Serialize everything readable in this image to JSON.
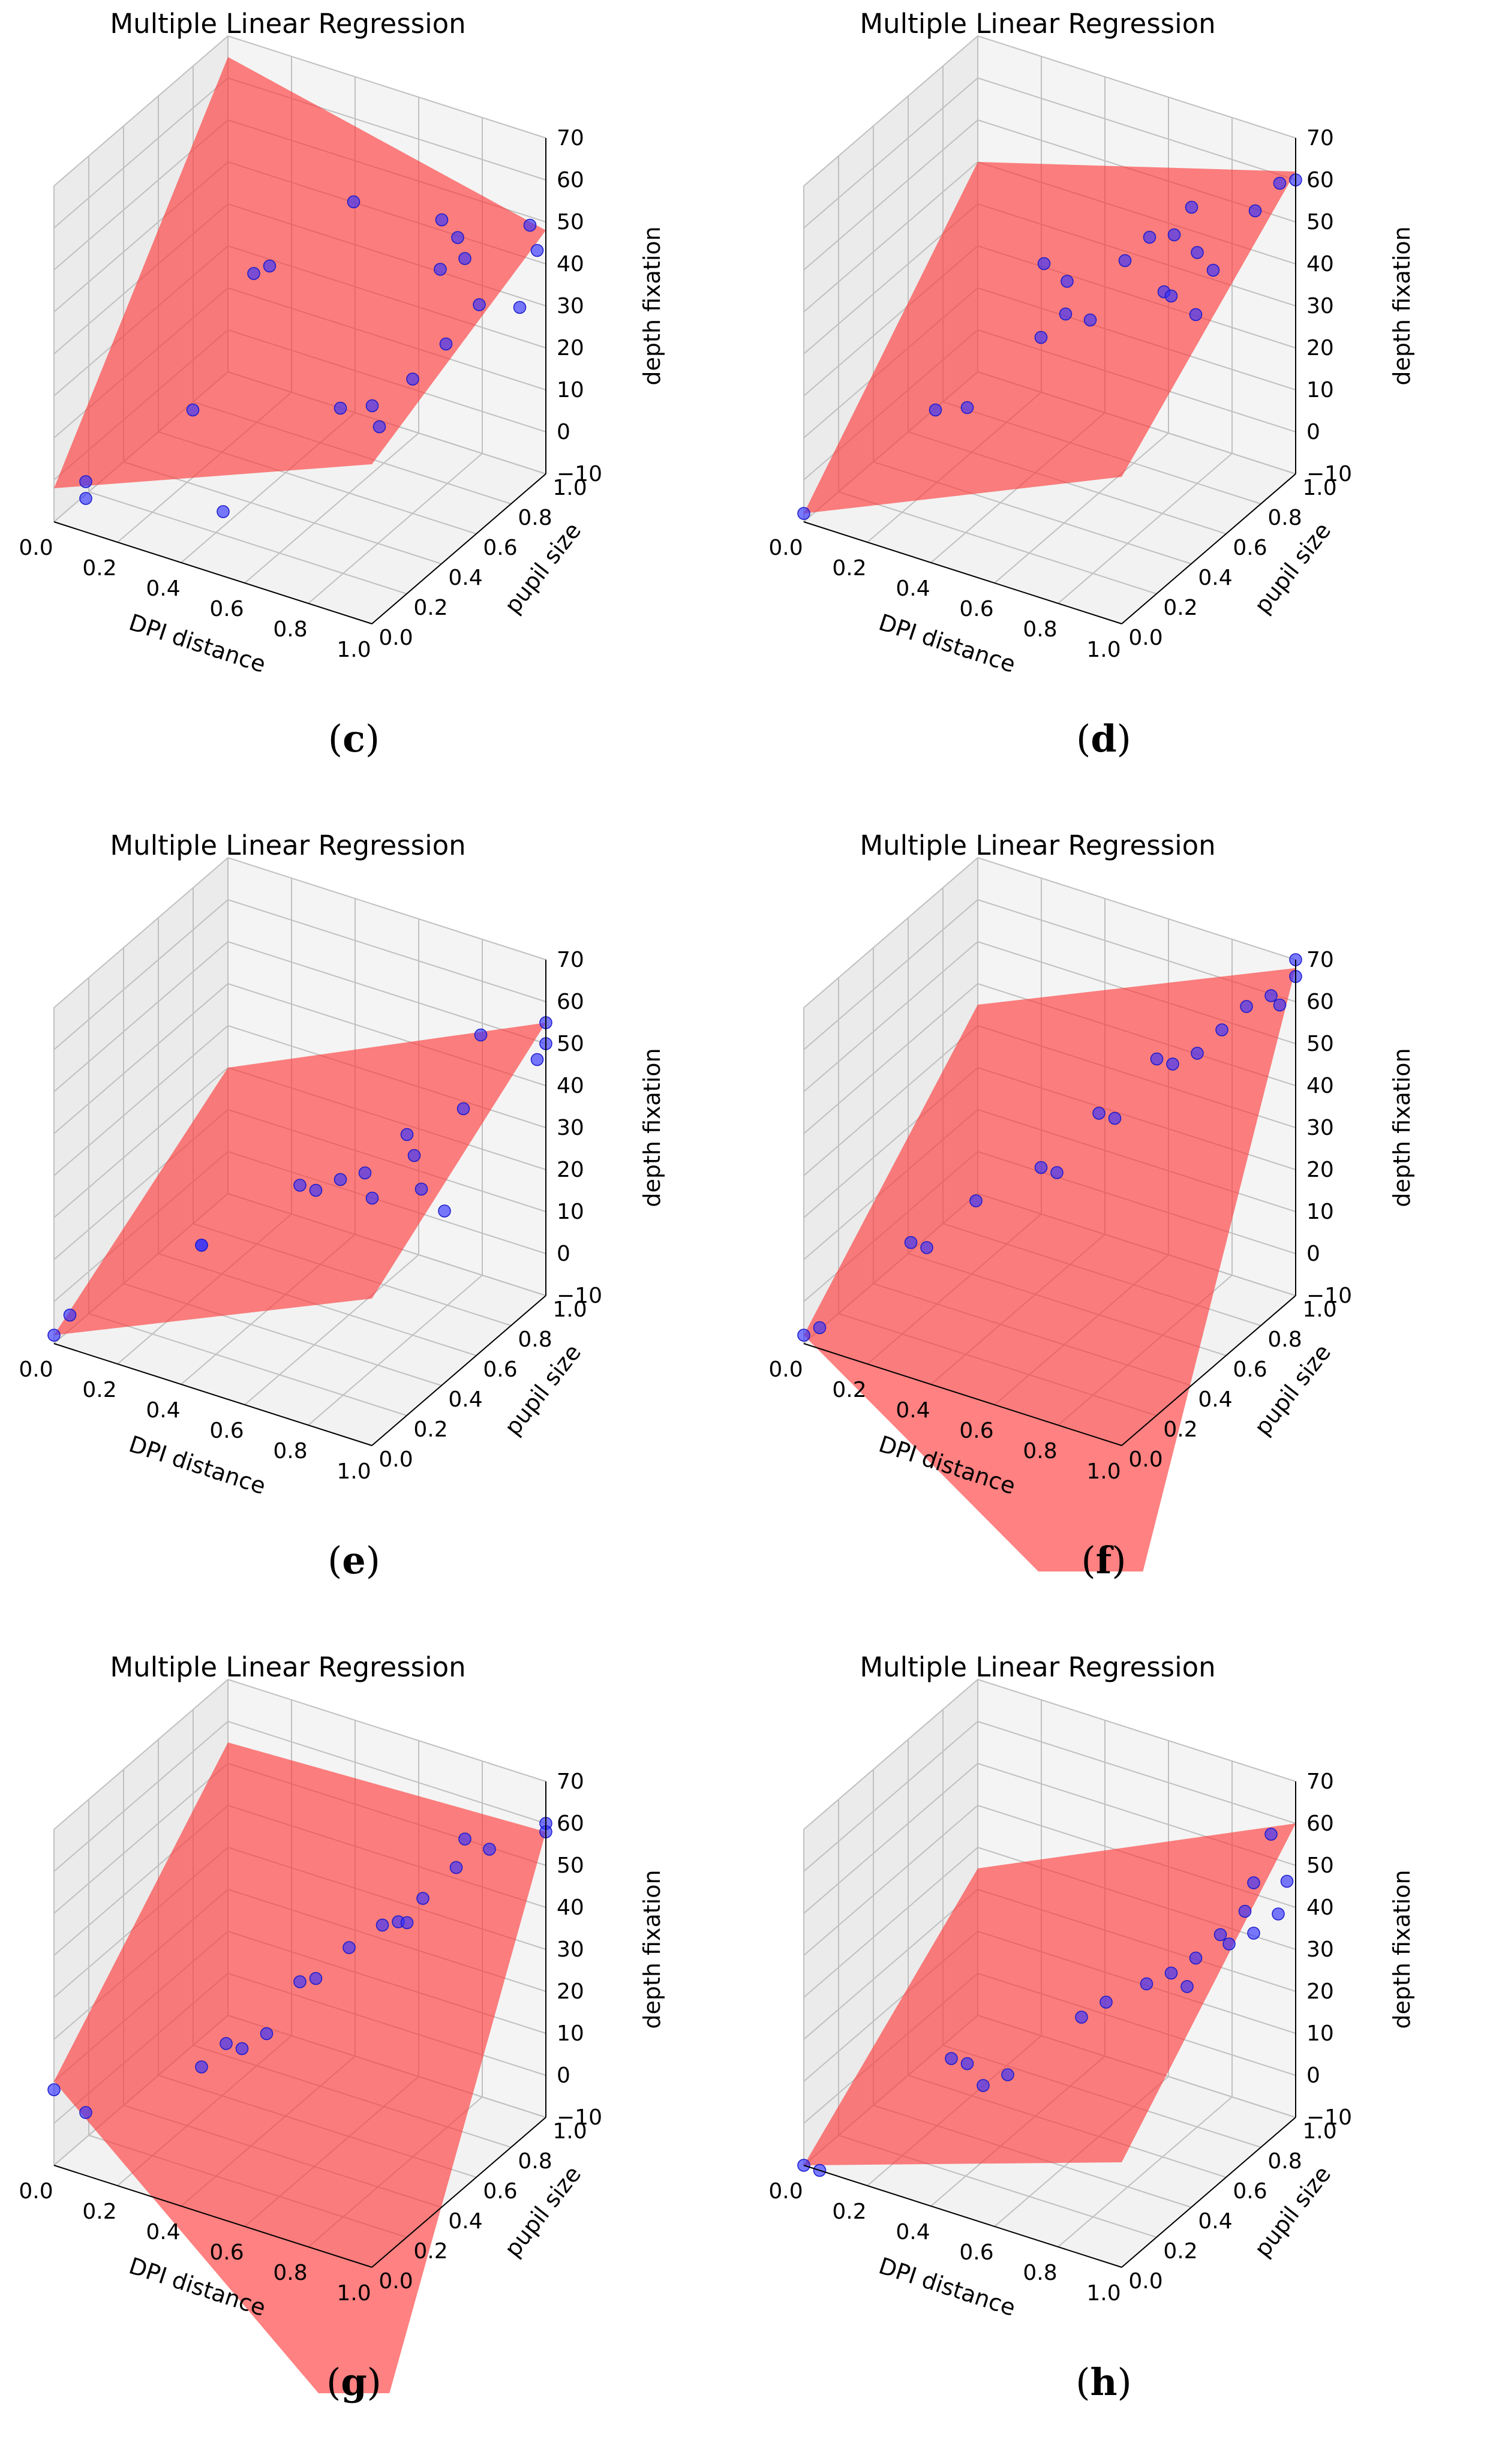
{
  "figure": {
    "panels": [
      {
        "id": "c",
        "caption": "c",
        "title": "Multiple Linear Regression"
      },
      {
        "id": "d",
        "caption": "d",
        "title": "Multiple Linear Regression"
      },
      {
        "id": "e",
        "caption": "e",
        "title": "Multiple Linear Regression"
      },
      {
        "id": "f",
        "caption": "f",
        "title": "Multiple Linear Regression"
      },
      {
        "id": "g",
        "caption": "g",
        "title": "Multiple Linear Regression"
      },
      {
        "id": "h",
        "caption": "h",
        "title": "Multiple Linear Regression"
      }
    ]
  },
  "colors": {
    "points": "#3333ff",
    "plane": "#ff3333",
    "pane": "#ececec",
    "grid": "#c0c0c0"
  },
  "chart_data": [
    {
      "type": "scatter3d",
      "title": "Multiple Linear Regression",
      "xlabel": "DPI distance",
      "ylabel": "pupil size",
      "zlabel": "depth fixation",
      "xticks": [
        "0.0",
        "0.2",
        "0.4",
        "0.6",
        "0.8",
        "1.0"
      ],
      "yticks": [
        "0.0",
        "0.2",
        "0.4",
        "0.6",
        "0.8",
        "1.0"
      ],
      "zticks": [
        "−10",
        "0",
        "10",
        "20",
        "30",
        "40",
        "50",
        "60",
        "70"
      ],
      "xlim": [
        0,
        1
      ],
      "ylim": [
        0,
        1
      ],
      "zlim": [
        -10,
        70
      ],
      "plane": [
        [
          0.0,
          0.0,
          -2
        ],
        [
          0.0,
          1.0,
          65
        ],
        [
          1.0,
          1.0,
          48
        ],
        [
          1.0,
          0.0,
          28
        ]
      ],
      "points": [
        [
          0.1,
          0.0,
          2
        ],
        [
          0.1,
          0.0,
          -2
        ],
        [
          0.3,
          0.25,
          15
        ],
        [
          0.45,
          0.15,
          -2
        ],
        [
          0.3,
          0.6,
          35
        ],
        [
          0.35,
          0.6,
          38
        ],
        [
          0.6,
          0.55,
          12
        ],
        [
          0.45,
          0.9,
          45
        ],
        [
          0.7,
          0.55,
          15
        ],
        [
          0.75,
          0.5,
          13
        ],
        [
          0.8,
          0.6,
          22
        ],
        [
          0.75,
          0.85,
          38
        ],
        [
          0.7,
          0.95,
          45
        ],
        [
          0.75,
          0.95,
          42
        ],
        [
          0.85,
          0.7,
          28
        ],
        [
          0.9,
          0.8,
          35
        ],
        [
          0.95,
          1.0,
          48
        ],
        [
          1.0,
          0.95,
          45
        ],
        [
          1.0,
          0.85,
          35
        ],
        [
          0.8,
          0.9,
          40
        ]
      ]
    },
    {
      "type": "scatter3d",
      "title": "Multiple Linear Regression",
      "xlabel": "DPI distance",
      "ylabel": "pupil size",
      "zlabel": "depth fixation",
      "xticks": [
        "0.0",
        "0.2",
        "0.4",
        "0.6",
        "0.8",
        "1.0"
      ],
      "yticks": [
        "0.0",
        "0.2",
        "0.4",
        "0.6",
        "0.8",
        "1.0"
      ],
      "zticks": [
        "−10",
        "0",
        "10",
        "20",
        "30",
        "40",
        "50",
        "60",
        "70"
      ],
      "xlim": [
        0,
        1
      ],
      "ylim": [
        0,
        1
      ],
      "zlim": [
        -10,
        70
      ],
      "plane": [
        [
          0.0,
          0.0,
          -8
        ],
        [
          0.0,
          1.0,
          40
        ],
        [
          1.0,
          1.0,
          62
        ],
        [
          1.0,
          0.0,
          25
        ]
      ],
      "points": [
        [
          0.0,
          0.0,
          -8
        ],
        [
          0.25,
          0.3,
          12
        ],
        [
          0.35,
          0.3,
          15
        ],
        [
          0.4,
          0.65,
          38
        ],
        [
          0.5,
          0.6,
          38
        ],
        [
          0.55,
          0.5,
          35
        ],
        [
          0.6,
          0.55,
          33
        ],
        [
          0.6,
          0.75,
          40
        ],
        [
          0.65,
          0.8,
          45
        ],
        [
          0.7,
          0.85,
          45
        ],
        [
          0.75,
          0.7,
          38
        ],
        [
          0.8,
          0.8,
          45
        ],
        [
          0.85,
          0.7,
          35
        ],
        [
          0.85,
          0.8,
          42
        ],
        [
          0.7,
          0.95,
          48
        ],
        [
          0.9,
          0.95,
          52
        ],
        [
          0.95,
          1.0,
          58
        ],
        [
          1.0,
          1.0,
          60
        ],
        [
          0.5,
          0.45,
          30
        ],
        [
          0.8,
          0.65,
          40
        ]
      ]
    },
    {
      "type": "scatter3d",
      "title": "Multiple Linear Regression",
      "xlabel": "DPI distance",
      "ylabel": "pupil size",
      "zlabel": "depth fixation",
      "xticks": [
        "0.0",
        "0.2",
        "0.4",
        "0.6",
        "0.8",
        "1.0"
      ],
      "yticks": [
        "0.0",
        "0.2",
        "0.4",
        "0.6",
        "0.8",
        "1.0"
      ],
      "zticks": [
        "−10",
        "0",
        "10",
        "20",
        "30",
        "40",
        "50",
        "60",
        "70"
      ],
      "xlim": [
        0,
        1
      ],
      "ylim": [
        0,
        1
      ],
      "zlim": [
        -10,
        70
      ],
      "plane": [
        [
          0.0,
          0.0,
          -8
        ],
        [
          0.0,
          1.0,
          20
        ],
        [
          1.0,
          1.0,
          55
        ],
        [
          1.0,
          0.0,
          25
        ]
      ],
      "points": [
        [
          0.0,
          0.0,
          -8
        ],
        [
          0.05,
          0.0,
          -2
        ],
        [
          0.3,
          0.3,
          10
        ],
        [
          0.3,
          0.3,
          10
        ],
        [
          0.5,
          0.5,
          22
        ],
        [
          0.55,
          0.5,
          22
        ],
        [
          0.6,
          0.55,
          24
        ],
        [
          0.65,
          0.6,
          25
        ],
        [
          0.7,
          0.55,
          22
        ],
        [
          0.7,
          0.75,
          30
        ],
        [
          0.75,
          0.7,
          28
        ],
        [
          0.8,
          0.65,
          23
        ],
        [
          0.85,
          0.8,
          38
        ],
        [
          0.85,
          0.9,
          52
        ],
        [
          1.0,
          1.0,
          55
        ],
        [
          1.0,
          1.0,
          50
        ],
        [
          1.0,
          0.95,
          48
        ],
        [
          0.9,
          0.6,
          22
        ]
      ]
    },
    {
      "type": "scatter3d",
      "title": "Multiple Linear Regression",
      "xlabel": "DPI distance",
      "ylabel": "pupil size",
      "zlabel": "depth fixation",
      "xticks": [
        "0.0",
        "0.2",
        "0.4",
        "0.6",
        "0.8",
        "1.0"
      ],
      "yticks": [
        "0.0",
        "0.2",
        "0.4",
        "0.6",
        "0.8",
        "1.0"
      ],
      "zticks": [
        "−10",
        "0",
        "10",
        "20",
        "30",
        "40",
        "50",
        "60",
        "70"
      ],
      "xlim": [
        0,
        1
      ],
      "ylim": [
        0,
        1
      ],
      "zlim": [
        -10,
        70
      ],
      "plane": [
        [
          0.0,
          0.0,
          -8
        ],
        [
          0.0,
          1.0,
          35
        ],
        [
          1.0,
          1.0,
          68
        ],
        [
          1.0,
          0.0,
          -60
        ]
      ],
      "points": [
        [
          0.0,
          0.0,
          -8
        ],
        [
          0.05,
          0.0,
          -5
        ],
        [
          0.2,
          0.25,
          10
        ],
        [
          0.25,
          0.25,
          10
        ],
        [
          0.35,
          0.35,
          20
        ],
        [
          0.5,
          0.45,
          28
        ],
        [
          0.55,
          0.45,
          28
        ],
        [
          0.6,
          0.6,
          38
        ],
        [
          0.65,
          0.6,
          38
        ],
        [
          0.7,
          0.75,
          48
        ],
        [
          0.75,
          0.75,
          48
        ],
        [
          0.8,
          0.8,
          50
        ],
        [
          0.85,
          0.85,
          55
        ],
        [
          0.9,
          0.9,
          60
        ],
        [
          0.95,
          0.95,
          62
        ],
        [
          1.0,
          1.0,
          66
        ],
        [
          1.0,
          1.0,
          70
        ],
        [
          0.95,
          1.0,
          58
        ]
      ]
    },
    {
      "type": "scatter3d",
      "title": "Multiple Linear Regression",
      "xlabel": "DPI distance",
      "ylabel": "pupil size",
      "zlabel": "depth fixation",
      "xticks": [
        "0.0",
        "0.2",
        "0.4",
        "0.6",
        "0.8",
        "1.0"
      ],
      "yticks": [
        "0.0",
        "0.2",
        "0.4",
        "0.6",
        "0.8",
        "1.0"
      ],
      "zticks": [
        "−10",
        "0",
        "10",
        "20",
        "30",
        "40",
        "50",
        "60",
        "70"
      ],
      "xlim": [
        0,
        1
      ],
      "ylim": [
        0,
        1
      ],
      "zlim": [
        -10,
        70
      ],
      "plane": [
        [
          0.0,
          0.0,
          10
        ],
        [
          0.0,
          1.0,
          55
        ],
        [
          1.0,
          1.0,
          58
        ],
        [
          1.0,
          0.0,
          -55
        ]
      ],
      "points": [
        [
          0.0,
          0.0,
          8
        ],
        [
          0.1,
          0.0,
          5
        ],
        [
          0.3,
          0.3,
          10
        ],
        [
          0.35,
          0.35,
          15
        ],
        [
          0.4,
          0.35,
          15
        ],
        [
          0.45,
          0.4,
          18
        ],
        [
          0.5,
          0.5,
          28
        ],
        [
          0.55,
          0.5,
          30
        ],
        [
          0.6,
          0.6,
          35
        ],
        [
          0.65,
          0.7,
          38
        ],
        [
          0.7,
          0.7,
          40
        ],
        [
          0.7,
          0.75,
          38
        ],
        [
          0.75,
          0.75,
          45
        ],
        [
          0.8,
          0.85,
          50
        ],
        [
          0.8,
          0.9,
          55
        ],
        [
          0.85,
          0.95,
          52
        ],
        [
          1.0,
          1.0,
          60
        ],
        [
          1.0,
          1.0,
          58
        ]
      ]
    },
    {
      "type": "scatter3d",
      "title": "Multiple Linear Regression",
      "xlabel": "DPI distance",
      "ylabel": "pupil size",
      "zlabel": "depth fixation",
      "xticks": [
        "0.0",
        "0.2",
        "0.4",
        "0.6",
        "0.8",
        "1.0"
      ],
      "yticks": [
        "0.0",
        "0.2",
        "0.4",
        "0.6",
        "0.8",
        "1.0"
      ],
      "zticks": [
        "−10",
        "0",
        "10",
        "20",
        "30",
        "40",
        "50",
        "60",
        "70"
      ],
      "xlim": [
        0,
        1
      ],
      "ylim": [
        0,
        1
      ],
      "zlim": [
        -10,
        70
      ],
      "plane": [
        [
          0.0,
          0.0,
          -10
        ],
        [
          0.0,
          1.0,
          25
        ],
        [
          1.0,
          1.0,
          60
        ],
        [
          1.0,
          0.0,
          15
        ]
      ],
      "points": [
        [
          0.0,
          0.0,
          -10
        ],
        [
          0.05,
          0.0,
          -10
        ],
        [
          0.3,
          0.3,
          12
        ],
        [
          0.35,
          0.3,
          12
        ],
        [
          0.4,
          0.3,
          8
        ],
        [
          0.45,
          0.35,
          10
        ],
        [
          0.6,
          0.5,
          22
        ],
        [
          0.65,
          0.55,
          25
        ],
        [
          0.75,
          0.6,
          30
        ],
        [
          0.8,
          0.65,
          32
        ],
        [
          0.85,
          0.65,
          30
        ],
        [
          0.85,
          0.7,
          35
        ],
        [
          0.9,
          0.75,
          40
        ],
        [
          0.95,
          0.8,
          45
        ],
        [
          0.95,
          0.85,
          50
        ],
        [
          0.95,
          0.95,
          58
        ],
        [
          1.0,
          0.9,
          42
        ],
        [
          0.95,
          0.85,
          38
        ],
        [
          1.0,
          0.95,
          48
        ],
        [
          0.9,
          0.8,
          36
        ]
      ]
    }
  ]
}
